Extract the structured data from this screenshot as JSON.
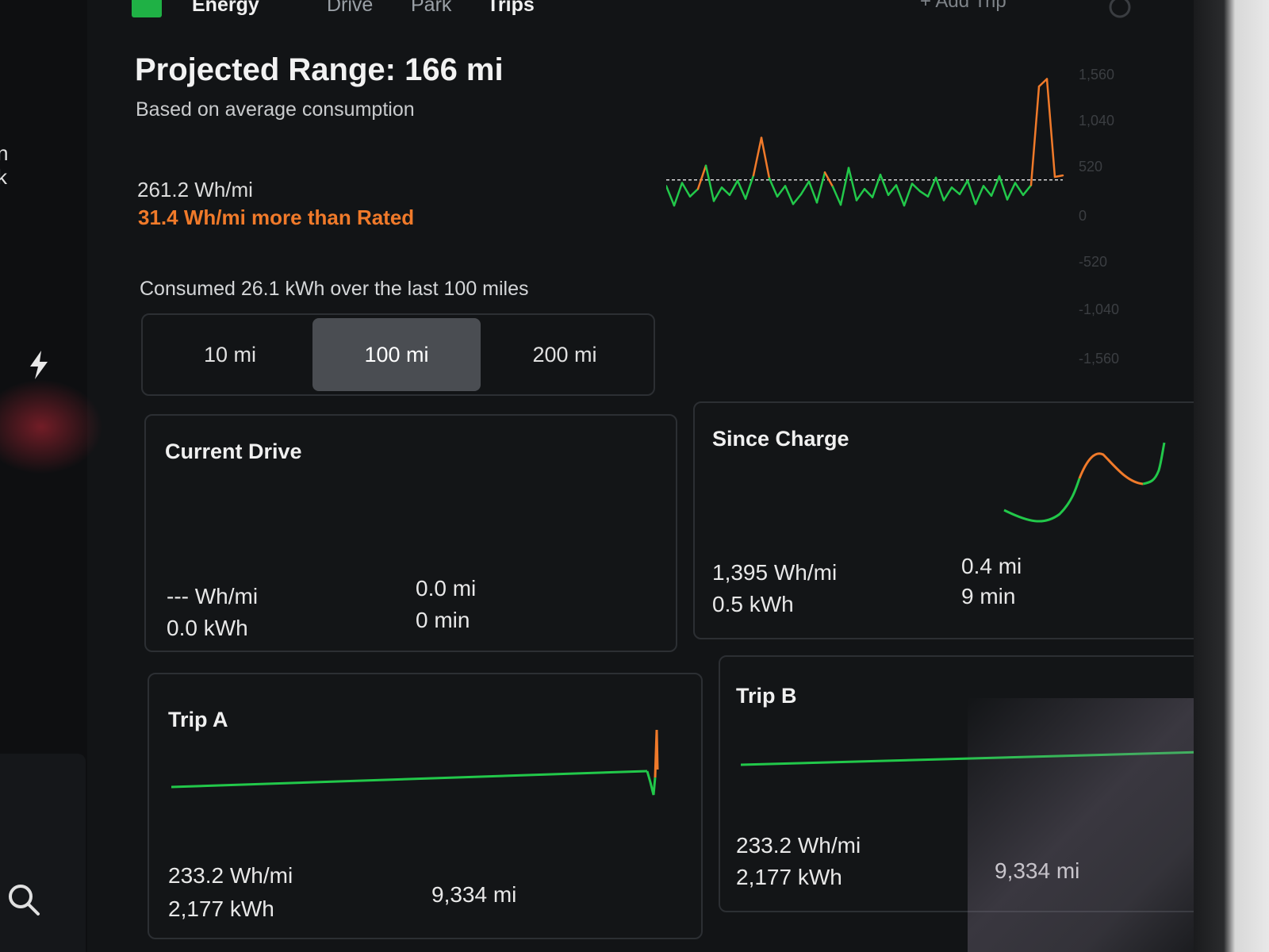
{
  "tabs": [
    {
      "label": "Energy",
      "active": true
    },
    {
      "label": "Drive",
      "active": false
    },
    {
      "label": "Park",
      "active": false
    },
    {
      "label": "Trips",
      "active": true
    }
  ],
  "add_trip_label": "+ Add Trip",
  "left_rail": {
    "partial_text_1": "n",
    "partial_text_2": "k"
  },
  "header": {
    "title": "Projected Range: 166 mi",
    "subtitle": "Based on average consumption"
  },
  "consumption": {
    "average": "261.2 Wh/mi",
    "delta": "31.4 Wh/mi more than Rated",
    "summary": "Consumed 26.1 kWh over the last 100 miles"
  },
  "chart_axis_labels": [
    "1,560",
    "1,040",
    "520",
    "0",
    "-520",
    "-1,040",
    "-1,560"
  ],
  "range_selector": {
    "options": [
      "10 mi",
      "100 mi",
      "200 mi"
    ],
    "selected": "100 mi"
  },
  "cards": {
    "current_drive": {
      "title": "Current Drive",
      "efficiency": "--- Wh/mi",
      "energy": "0.0 kWh",
      "distance": "0.0 mi",
      "duration": "0 min"
    },
    "since_charge": {
      "title": "Since Charge",
      "efficiency": "1,395 Wh/mi",
      "energy": "0.5 kWh",
      "distance": "0.4 mi",
      "duration": "9 min"
    },
    "trip_a": {
      "title": "Trip A",
      "efficiency": "233.2 Wh/mi",
      "energy": "2,177 kWh",
      "distance": "9,334 mi"
    },
    "trip_b": {
      "title": "Trip B",
      "efficiency": "233.2 Wh/mi",
      "energy": "2,177 kWh",
      "distance": "9,334 mi"
    }
  },
  "colors": {
    "accent_green": "#22c84a",
    "accent_orange": "#f07a2a",
    "rated_line": "#d8d8d8",
    "selected_tab_bg": "#4a4d52"
  },
  "icons": [
    "energy-icon",
    "bolt-icon",
    "search-icon",
    "settings-icon"
  ],
  "chart_data": {
    "type": "line",
    "x": [
      0,
      2,
      4,
      6,
      8,
      10,
      12,
      14,
      16,
      18,
      20,
      22,
      24,
      26,
      28,
      30,
      32,
      34,
      36,
      38,
      40,
      42,
      44,
      46,
      48,
      50,
      52,
      54,
      56,
      58,
      60,
      62,
      64,
      66,
      68,
      70,
      72,
      74,
      76,
      78,
      80,
      82,
      84,
      86,
      88,
      90,
      92,
      94,
      96,
      98,
      100
    ],
    "series": [
      {
        "values": [
          80,
          -180,
          120,
          -60,
          40,
          350,
          -120,
          60,
          -40,
          150,
          -90,
          220,
          720,
          180,
          -60,
          80,
          -160,
          -30,
          140,
          -140,
          260,
          70,
          -170,
          320,
          -110,
          40,
          -70,
          230,
          -40,
          90,
          -180,
          110,
          10,
          -60,
          190,
          -110,
          60,
          -30,
          150,
          -160,
          80,
          -50,
          210,
          -100,
          120,
          -40,
          90,
          1400,
          1500,
          200,
          220
        ]
      }
    ],
    "rated_line_value": 160,
    "ylim": [
      -1560,
      1560
    ],
    "y_ticks": [
      "1,560",
      "1,040",
      "520",
      "0",
      "-520",
      "-1,040",
      "-1,560"
    ]
  }
}
